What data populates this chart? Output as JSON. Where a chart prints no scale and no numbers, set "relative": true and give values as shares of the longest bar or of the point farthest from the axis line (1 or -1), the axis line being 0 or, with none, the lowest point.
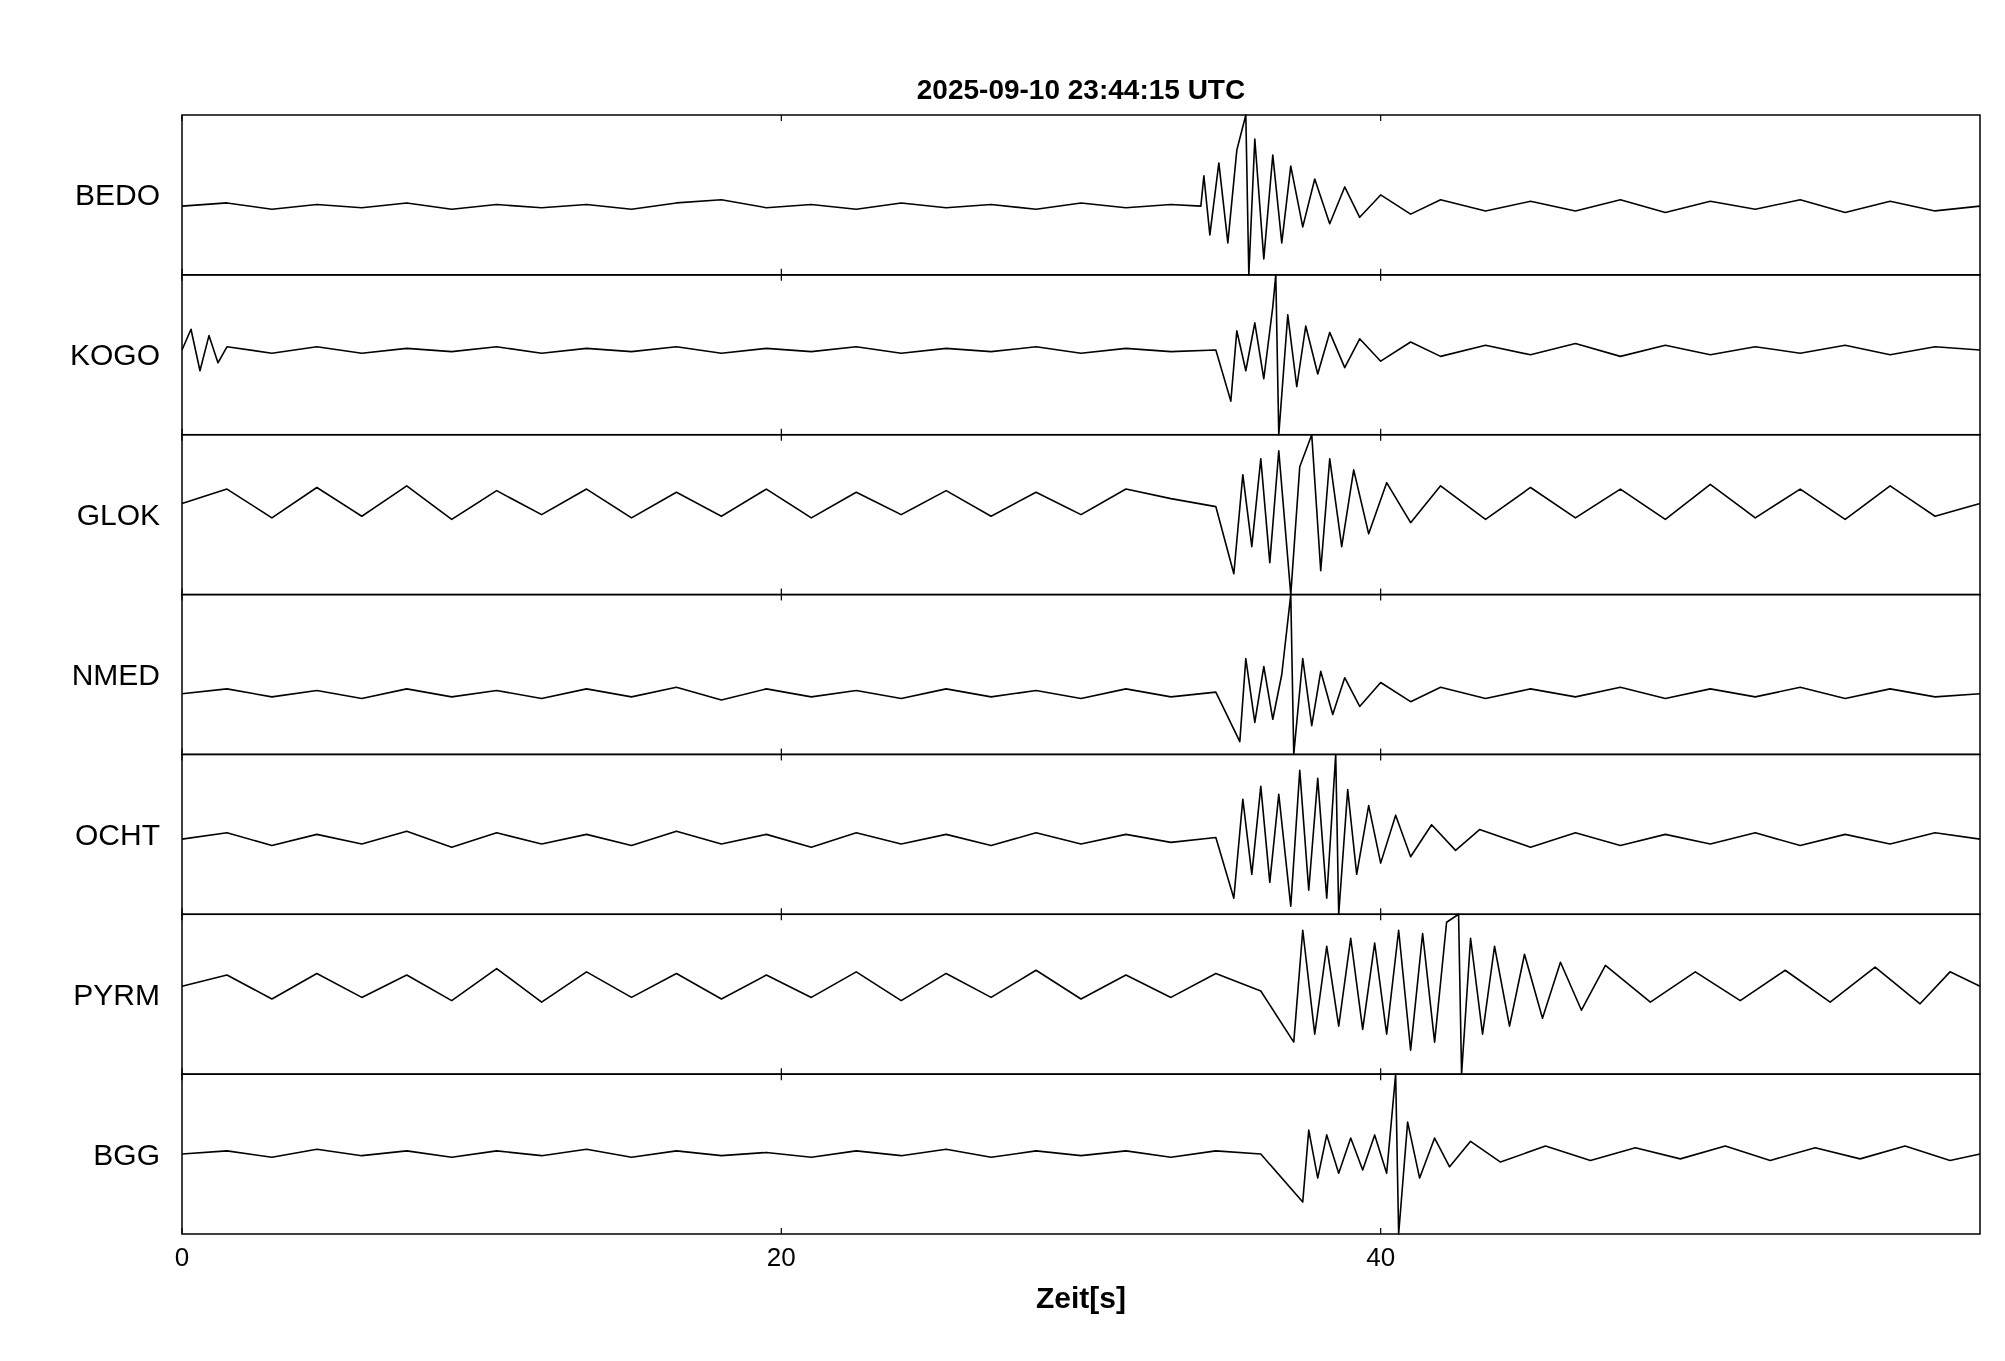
{
  "chart_data": [
    {
      "type": "line",
      "title": "2025-09-10  23:44:15 UTC",
      "ylabel": "BEDO",
      "relative": true,
      "xlim": [
        0,
        60
      ],
      "xticks": [
        0,
        20,
        40
      ],
      "tick_labels": false,
      "series": [
        {
          "color": "#000000",
          "x": [
            0,
            1.5,
            3,
            4.5,
            6,
            7.5,
            9,
            10.5,
            12,
            13.5,
            15,
            16.5,
            18,
            19.5,
            21,
            22.5,
            24,
            25.5,
            27,
            28.5,
            30,
            31.5,
            33,
            34,
            34.1,
            34.3,
            34.6,
            34.9,
            35.2,
            35.5,
            35.6,
            35.8,
            36.1,
            36.4,
            36.7,
            37,
            37.4,
            37.8,
            38.3,
            38.8,
            39.3,
            40,
            41,
            42,
            43.5,
            45,
            46.5,
            48,
            49.5,
            51,
            52.5,
            54,
            55.5,
            57,
            58.5,
            60
          ],
          "values": [
            0.43,
            0.45,
            0.41,
            0.44,
            0.42,
            0.45,
            0.41,
            0.44,
            0.42,
            0.44,
            0.41,
            0.45,
            0.47,
            0.42,
            0.44,
            0.41,
            0.45,
            0.42,
            0.44,
            0.41,
            0.45,
            0.42,
            0.44,
            0.43,
            0.62,
            0.25,
            0.7,
            0.2,
            0.78,
            1,
            0,
            0.85,
            0.1,
            0.75,
            0.2,
            0.68,
            0.3,
            0.6,
            0.32,
            0.55,
            0.36,
            0.5,
            0.38,
            0.47,
            0.4,
            0.46,
            0.4,
            0.47,
            0.39,
            0.46,
            0.41,
            0.47,
            0.39,
            0.46,
            0.4,
            0.43
          ]
        }
      ]
    },
    {
      "type": "line",
      "ylabel": "KOGO",
      "relative": true,
      "xlim": [
        0,
        60
      ],
      "xticks": [
        0,
        20,
        40
      ],
      "tick_labels": false,
      "series": [
        {
          "color": "#000000",
          "x": [
            0,
            0.3,
            0.6,
            0.9,
            1.2,
            1.5,
            3,
            4.5,
            6,
            7.5,
            9,
            10.5,
            12,
            13.5,
            15,
            16.5,
            18,
            19.5,
            21,
            22.5,
            24,
            25.5,
            27,
            28.5,
            30,
            31.5,
            33,
            34.5,
            35,
            35.2,
            35.5,
            35.8,
            36.1,
            36.4,
            36.5,
            36.6,
            36.9,
            37.2,
            37.5,
            37.9,
            38.3,
            38.8,
            39.3,
            40,
            41,
            42,
            43.5,
            45,
            46.5,
            48,
            49.5,
            51,
            52.5,
            54,
            55.5,
            57,
            58.5,
            60
          ],
          "values": [
            0.53,
            0.66,
            0.4,
            0.62,
            0.45,
            0.55,
            0.51,
            0.55,
            0.51,
            0.54,
            0.52,
            0.55,
            0.51,
            0.54,
            0.52,
            0.55,
            0.51,
            0.54,
            0.52,
            0.55,
            0.51,
            0.54,
            0.52,
            0.55,
            0.51,
            0.54,
            0.52,
            0.53,
            0.21,
            0.65,
            0.4,
            0.7,
            0.35,
            0.8,
            1,
            0,
            0.75,
            0.3,
            0.68,
            0.38,
            0.64,
            0.42,
            0.6,
            0.46,
            0.58,
            0.49,
            0.56,
            0.5,
            0.57,
            0.49,
            0.56,
            0.5,
            0.55,
            0.51,
            0.56,
            0.5,
            0.55,
            0.53
          ]
        }
      ]
    },
    {
      "type": "line",
      "ylabel": "GLOK",
      "relative": true,
      "xlim": [
        0,
        60
      ],
      "xticks": [
        0,
        20,
        40
      ],
      "tick_labels": false,
      "series": [
        {
          "color": "#000000",
          "x": [
            0,
            1.5,
            3,
            4.5,
            6,
            7.5,
            9,
            10.5,
            12,
            13.5,
            15,
            16.5,
            18,
            19.5,
            21,
            22.5,
            24,
            25.5,
            27,
            28.5,
            30,
            31.5,
            33,
            34.5,
            35.1,
            35.4,
            35.7,
            36,
            36.3,
            36.6,
            37,
            37.3,
            37.7,
            38,
            38.3,
            38.7,
            39.1,
            39.6,
            40.2,
            41,
            42,
            43.5,
            45,
            46.5,
            48,
            49.5,
            51,
            52.5,
            54,
            55.5,
            57,
            58.5,
            60
          ],
          "values": [
            0.57,
            0.66,
            0.48,
            0.67,
            0.49,
            0.68,
            0.47,
            0.65,
            0.5,
            0.66,
            0.48,
            0.64,
            0.49,
            0.66,
            0.48,
            0.64,
            0.5,
            0.65,
            0.49,
            0.64,
            0.5,
            0.66,
            0.6,
            0.55,
            0.13,
            0.75,
            0.3,
            0.85,
            0.2,
            0.9,
            0,
            0.8,
            1,
            0.15,
            0.85,
            0.3,
            0.78,
            0.38,
            0.7,
            0.45,
            0.68,
            0.47,
            0.67,
            0.48,
            0.66,
            0.47,
            0.69,
            0.48,
            0.66,
            0.47,
            0.68,
            0.49,
            0.57
          ]
        }
      ]
    },
    {
      "type": "line",
      "ylabel": "NMED",
      "relative": true,
      "xlim": [
        0,
        60
      ],
      "xticks": [
        0,
        20,
        40
      ],
      "tick_labels": false,
      "series": [
        {
          "color": "#000000",
          "x": [
            0,
            1.5,
            3,
            4.5,
            6,
            7.5,
            9,
            10.5,
            12,
            13.5,
            15,
            16.5,
            18,
            19.5,
            21,
            22.5,
            24,
            25.5,
            27,
            28.5,
            30,
            31.5,
            33,
            34.5,
            35.3,
            35.5,
            35.8,
            36.1,
            36.4,
            36.7,
            37,
            37.1,
            37.4,
            37.7,
            38,
            38.4,
            38.8,
            39.3,
            40,
            41,
            42,
            43.5,
            45,
            46.5,
            48,
            49.5,
            51,
            52.5,
            54,
            55.5,
            57,
            58.5,
            60
          ],
          "values": [
            0.38,
            0.41,
            0.36,
            0.4,
            0.35,
            0.41,
            0.36,
            0.4,
            0.35,
            0.41,
            0.36,
            0.42,
            0.34,
            0.41,
            0.36,
            0.4,
            0.35,
            0.41,
            0.36,
            0.4,
            0.35,
            0.41,
            0.36,
            0.39,
            0.08,
            0.6,
            0.2,
            0.55,
            0.22,
            0.5,
            1,
            0,
            0.6,
            0.18,
            0.52,
            0.25,
            0.48,
            0.3,
            0.45,
            0.33,
            0.42,
            0.35,
            0.41,
            0.36,
            0.42,
            0.35,
            0.41,
            0.36,
            0.42,
            0.35,
            0.41,
            0.36,
            0.38
          ]
        }
      ]
    },
    {
      "type": "line",
      "ylabel": "OCHT",
      "relative": true,
      "xlim": [
        0,
        60
      ],
      "xticks": [
        0,
        20,
        40
      ],
      "tick_labels": false,
      "series": [
        {
          "color": "#000000",
          "x": [
            0,
            1.5,
            3,
            4.5,
            6,
            7.5,
            9,
            10.5,
            12,
            13.5,
            15,
            16.5,
            18,
            19.5,
            21,
            22.5,
            24,
            25.5,
            27,
            28.5,
            30,
            31.5,
            33,
            34.5,
            35.1,
            35.4,
            35.7,
            36,
            36.3,
            36.6,
            37,
            37.3,
            37.6,
            37.9,
            38.2,
            38.5,
            38.6,
            38.9,
            39.2,
            39.6,
            40,
            40.5,
            41,
            41.7,
            42.5,
            43.3,
            45,
            46.5,
            48,
            49.5,
            51,
            52.5,
            54,
            55.5,
            57,
            58.5,
            60
          ],
          "values": [
            0.47,
            0.51,
            0.43,
            0.5,
            0.44,
            0.52,
            0.42,
            0.51,
            0.44,
            0.5,
            0.43,
            0.52,
            0.44,
            0.5,
            0.42,
            0.51,
            0.44,
            0.5,
            0.43,
            0.51,
            0.44,
            0.5,
            0.45,
            0.48,
            0.1,
            0.72,
            0.25,
            0.8,
            0.2,
            0.75,
            0.05,
            0.9,
            0.15,
            0.85,
            0.1,
            1,
            0,
            0.78,
            0.25,
            0.68,
            0.32,
            0.62,
            0.36,
            0.56,
            0.4,
            0.53,
            0.42,
            0.51,
            0.43,
            0.5,
            0.44,
            0.51,
            0.43,
            0.5,
            0.44,
            0.51,
            0.47
          ]
        }
      ]
    },
    {
      "type": "line",
      "ylabel": "PYRM",
      "relative": true,
      "xlim": [
        0,
        60
      ],
      "xticks": [
        0,
        20,
        40
      ],
      "tick_labels": false,
      "series": [
        {
          "color": "#000000",
          "x": [
            0,
            1.5,
            3,
            4.5,
            6,
            7.5,
            9,
            10.5,
            12,
            13.5,
            15,
            16.5,
            18,
            19.5,
            21,
            22.5,
            24,
            25.5,
            27,
            28.5,
            30,
            31.5,
            33,
            34.5,
            36,
            37.1,
            37.4,
            37.8,
            38.2,
            38.6,
            39,
            39.4,
            39.8,
            40.2,
            40.6,
            41,
            41.4,
            41.8,
            42.2,
            42.6,
            42.7,
            43,
            43.4,
            43.8,
            44.3,
            44.8,
            45.4,
            46,
            46.7,
            47.5,
            49,
            50.5,
            52,
            53.5,
            55,
            56.5,
            58,
            59,
            60
          ],
          "values": [
            0.55,
            0.62,
            0.47,
            0.63,
            0.48,
            0.62,
            0.46,
            0.66,
            0.45,
            0.64,
            0.48,
            0.63,
            0.47,
            0.62,
            0.48,
            0.64,
            0.46,
            0.63,
            0.48,
            0.65,
            0.47,
            0.62,
            0.48,
            0.63,
            0.52,
            0.2,
            0.9,
            0.25,
            0.8,
            0.3,
            0.85,
            0.28,
            0.82,
            0.25,
            0.9,
            0.15,
            0.88,
            0.2,
            0.95,
            1,
            0,
            0.85,
            0.25,
            0.8,
            0.3,
            0.75,
            0.35,
            0.7,
            0.4,
            0.68,
            0.45,
            0.64,
            0.46,
            0.65,
            0.45,
            0.67,
            0.44,
            0.64,
            0.55
          ]
        }
      ]
    },
    {
      "type": "line",
      "ylabel": "BGG",
      "xlabel": "Zeit[s]",
      "relative": true,
      "xlim": [
        0,
        60
      ],
      "xticks": [
        0,
        20,
        40
      ],
      "tick_labels": "x",
      "series": [
        {
          "color": "#000000",
          "x": [
            0,
            1.5,
            3,
            4.5,
            6,
            7.5,
            9,
            10.5,
            12,
            13.5,
            15,
            16.5,
            18,
            19.5,
            21,
            22.5,
            24,
            25.5,
            27,
            28.5,
            30,
            31.5,
            33,
            34.5,
            36,
            37.4,
            37.6,
            37.9,
            38.2,
            38.6,
            39,
            39.4,
            39.8,
            40.2,
            40.5,
            40.6,
            40.9,
            41.3,
            41.8,
            42.3,
            43,
            44,
            45.5,
            47,
            48.5,
            50,
            51.5,
            53,
            54.5,
            56,
            57.5,
            59,
            60
          ],
          "values": [
            0.5,
            0.52,
            0.48,
            0.53,
            0.49,
            0.52,
            0.48,
            0.52,
            0.49,
            0.53,
            0.48,
            0.52,
            0.49,
            0.51,
            0.48,
            0.52,
            0.49,
            0.53,
            0.48,
            0.52,
            0.49,
            0.52,
            0.48,
            0.52,
            0.5,
            0.2,
            0.65,
            0.35,
            0.62,
            0.38,
            0.6,
            0.4,
            0.62,
            0.38,
            1,
            0,
            0.7,
            0.35,
            0.6,
            0.42,
            0.58,
            0.45,
            0.55,
            0.46,
            0.54,
            0.47,
            0.55,
            0.46,
            0.54,
            0.47,
            0.55,
            0.46,
            0.5
          ]
        }
      ]
    }
  ]
}
